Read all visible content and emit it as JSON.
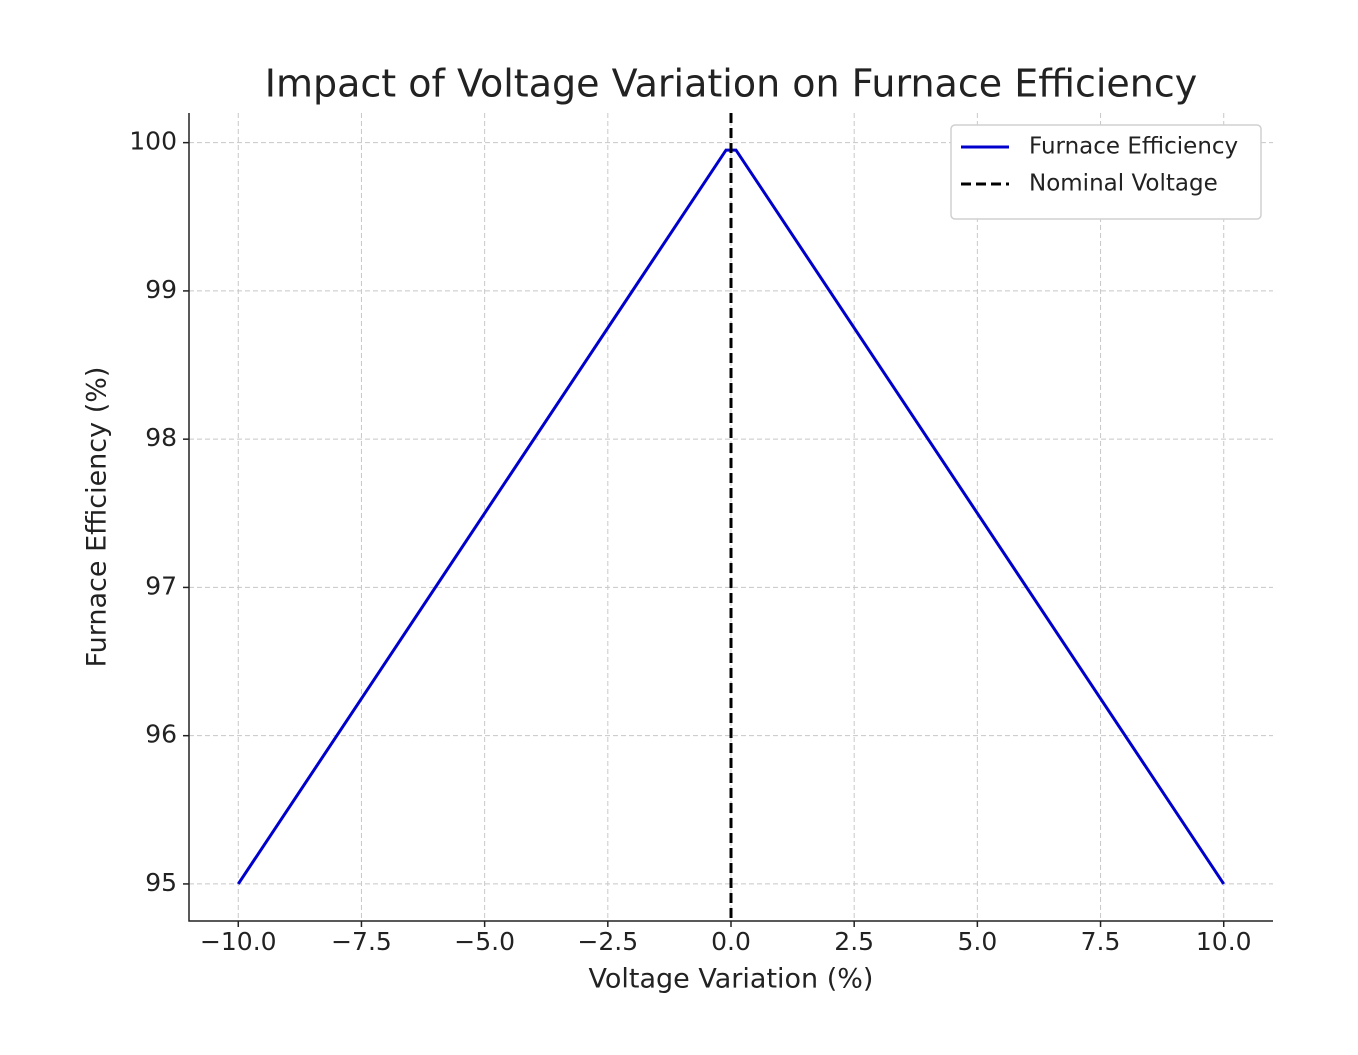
{
  "chart_data": {
    "type": "line",
    "title": "Impact of Voltage Variation on Furnace Efficiency",
    "x_label": "Voltage Variation (%)",
    "y_label": "Furnace Efficiency (%)",
    "x": [
      -10,
      -0.101,
      0.101,
      10
    ],
    "series": [
      {
        "name": "Furnace Efficiency",
        "color": "#0000cc",
        "values": [
          95,
          99.95,
          99.95,
          95
        ]
      }
    ],
    "vlines": [
      {
        "name": "Nominal Voltage",
        "x": 0,
        "color": "#000000",
        "style": "dashed"
      }
    ],
    "xlim": [
      -11,
      11
    ],
    "ylim": [
      94.75,
      100.2
    ],
    "xticks": [
      {
        "value": -10,
        "label": "−10.0"
      },
      {
        "value": -7.5,
        "label": "−7.5"
      },
      {
        "value": -5,
        "label": "−5.0"
      },
      {
        "value": -2.5,
        "label": "−2.5"
      },
      {
        "value": 0,
        "label": "0.0"
      },
      {
        "value": 2.5,
        "label": "2.5"
      },
      {
        "value": 5,
        "label": "5.0"
      },
      {
        "value": 7.5,
        "label": "7.5"
      },
      {
        "value": 10,
        "label": "10.0"
      }
    ],
    "yticks": [
      95,
      96,
      97,
      98,
      99,
      100
    ],
    "grid": true,
    "legend": "upper right"
  }
}
